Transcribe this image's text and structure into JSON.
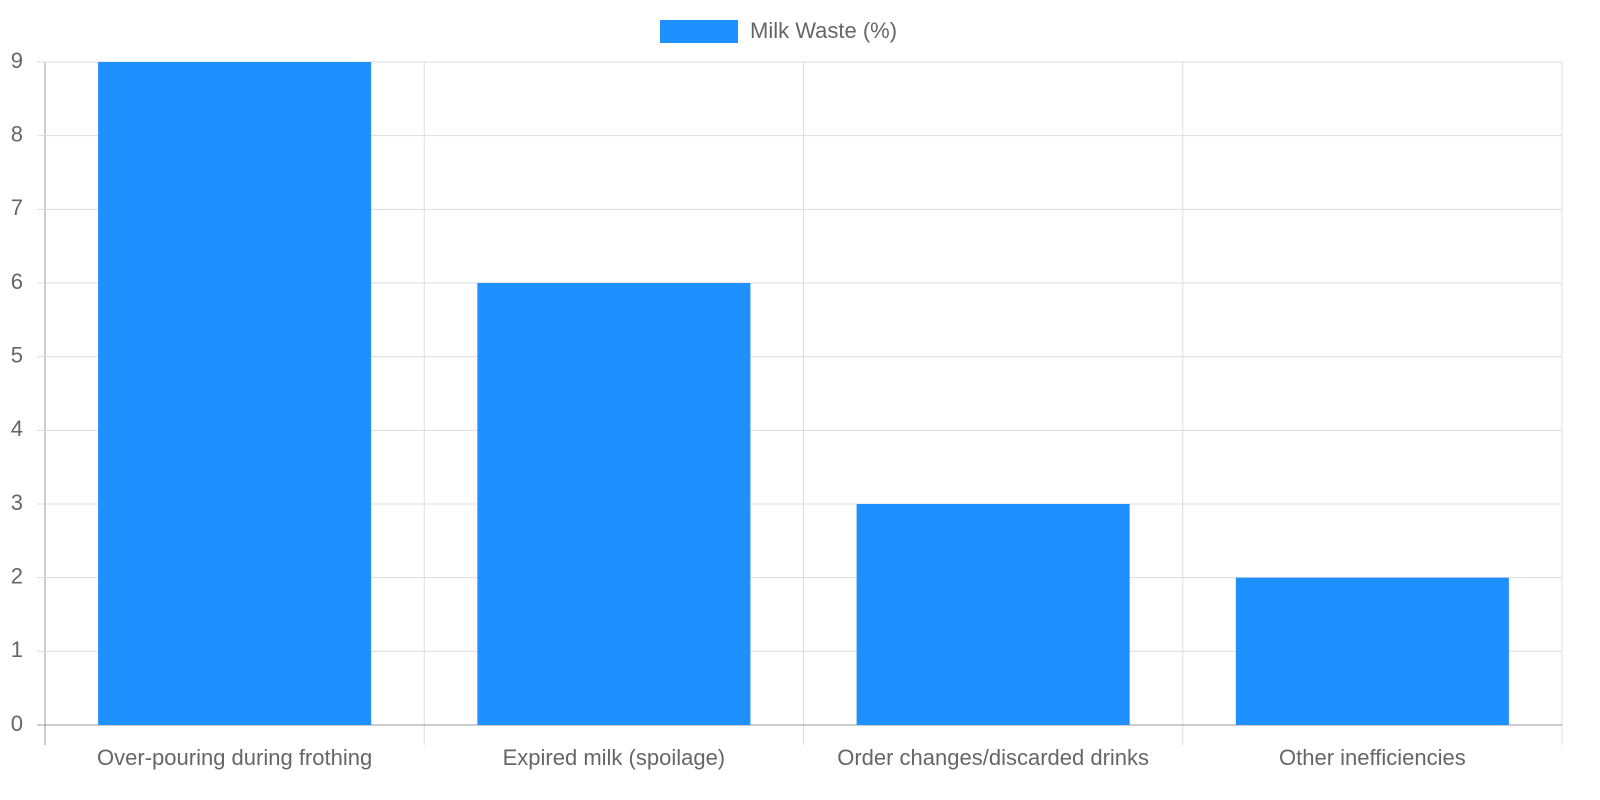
{
  "chart_data": {
    "type": "bar",
    "categories": [
      "Over-pouring during frothing",
      "Expired milk (spoilage)",
      "Order changes/discarded drinks",
      "Other inefficiencies"
    ],
    "series": [
      {
        "name": "Milk Waste (%)",
        "color": "#1e90ff",
        "values": [
          9,
          6,
          3,
          2
        ]
      }
    ],
    "ylim": [
      0,
      9
    ],
    "yticks": [
      0,
      1,
      2,
      3,
      4,
      5,
      6,
      7,
      8,
      9
    ],
    "grid": true,
    "legend": "top"
  }
}
